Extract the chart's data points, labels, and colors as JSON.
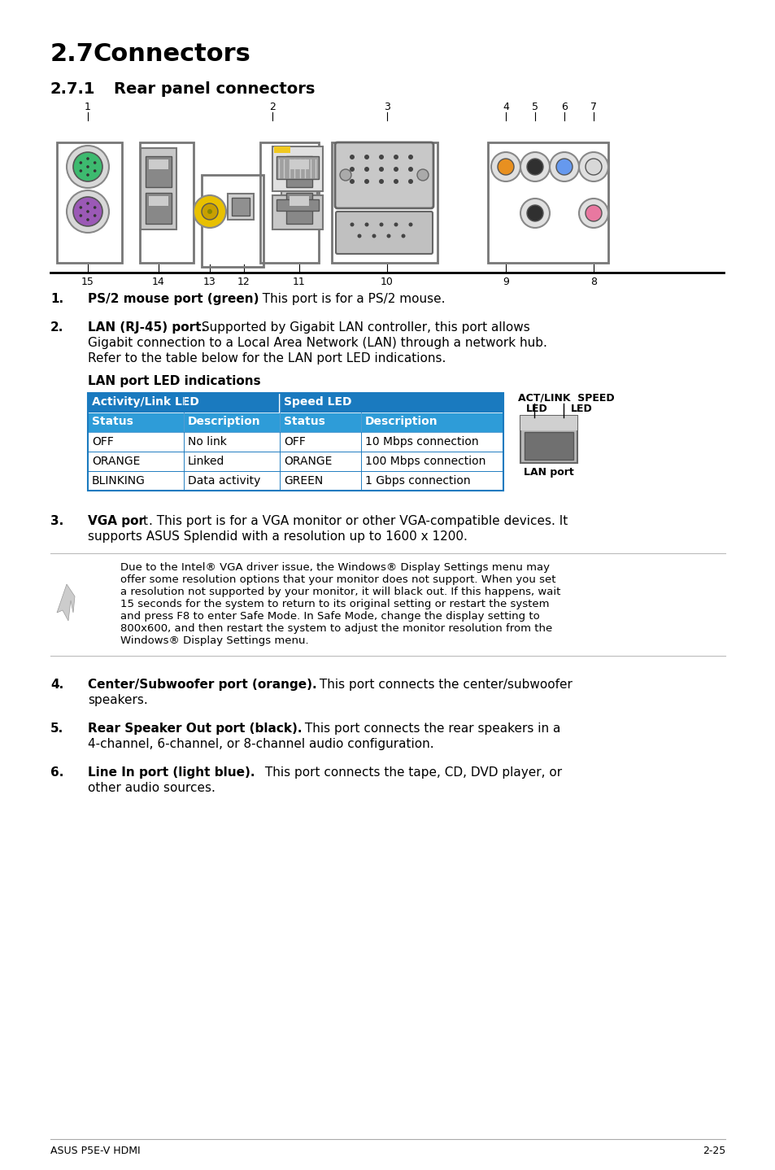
{
  "bg_color": "#ffffff",
  "title1": "2.7",
  "title1_text": "Connectors",
  "title2": "2.7.1",
  "title2_text": "Rear panel connectors",
  "table_header_color": "#1a7abf",
  "table_subheader_color": "#2e9cd8",
  "lan_table": {
    "col1_header": "Activity/Link LED",
    "col2_header": "Speed LED",
    "sub_headers": [
      "Status",
      "Description",
      "Status",
      "Description"
    ],
    "rows": [
      [
        "OFF",
        "No link",
        "OFF",
        "10 Mbps connection"
      ],
      [
        "ORANGE",
        "Linked",
        "ORANGE",
        "100 Mbps connection"
      ],
      [
        "BLINKING",
        "Data activity",
        "GREEN",
        "1 Gbps connection"
      ]
    ]
  },
  "footer_left": "ASUS P5E-V HDMI",
  "footer_right": "2-25",
  "note_text": "Due to the Intel® VGA driver issue, the Windows® Display Settings menu may\noffer some resolution options that your monitor does not support. When you set\na resolution not supported by your monitor, it will black out. If this happens, wait\n15 seconds for the system to return to its original setting or restart the system\nand press F8 to enter Safe Mode. In Safe Mode, change the display setting to\n800x600, and then restart the system to adjust the monitor resolution from the\nWindows® Display Settings menu."
}
